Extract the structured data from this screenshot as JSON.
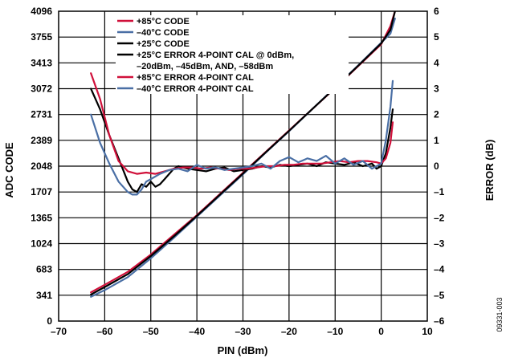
{
  "chart_data": {
    "type": "line",
    "xlabel": "PIN (dBm)",
    "ylabel": "ADC CODE",
    "y2label": "ERROR (dB)",
    "xlim": [
      -70,
      10
    ],
    "ylim": [
      0,
      4096
    ],
    "y2lim": [
      -6,
      6
    ],
    "xticks": [
      "–70",
      "–60",
      "–50",
      "–40",
      "–30",
      "–20",
      "–10",
      "0",
      "10"
    ],
    "yticks": [
      "0",
      "341",
      "683",
      "1024",
      "1365",
      "1707",
      "2048",
      "2389",
      "2731",
      "3072",
      "3413",
      "3755",
      "4096"
    ],
    "y2ticks": [
      "–6",
      "–5",
      "–4",
      "–3",
      "–2",
      "–1",
      "0",
      "1",
      "2",
      "3",
      "4",
      "5",
      "6"
    ],
    "grid": true,
    "legend_position": "top-left",
    "figure_id": "09331-003",
    "legend": [
      {
        "label": "+85°C CODE",
        "color": "#d0103a"
      },
      {
        "label": "–40°C CODE",
        "color": "#4a6fa5"
      },
      {
        "label": "+25°C CODE",
        "color": "#000000"
      },
      {
        "label": "+25°C ERROR 4-POINT CAL @ 0dBm,",
        "label2": "–20dBm, –45dBm, AND, –58dBm",
        "color": "#000000"
      },
      {
        "label": "+85°C ERROR 4-POINT CAL",
        "color": "#d0103a"
      },
      {
        "label": "–40°C ERROR 4-POINT CAL",
        "color": "#4a6fa5"
      }
    ],
    "series": [
      {
        "axis": "left",
        "color": "#d0103a",
        "x": [
          -63,
          -60,
          -55,
          -50,
          -45,
          -40,
          -35,
          -30,
          -25,
          -20,
          -15,
          -10,
          -5,
          0,
          2,
          3
        ],
        "y": [
          380,
          480,
          650,
          880,
          1140,
          1400,
          1680,
          1960,
          2240,
          2520,
          2800,
          3080,
          3370,
          3660,
          3900,
          4096
        ]
      },
      {
        "axis": "left",
        "color": "#4a6fa5",
        "x": [
          -63,
          -60,
          -55,
          -50,
          -45,
          -40,
          -35,
          -30,
          -25,
          -20,
          -15,
          -10,
          -5,
          0,
          2,
          3
        ],
        "y": [
          320,
          410,
          580,
          830,
          1100,
          1380,
          1660,
          1940,
          2230,
          2510,
          2800,
          3090,
          3380,
          3680,
          3800,
          4000
        ]
      },
      {
        "axis": "left",
        "color": "#000000",
        "x": [
          -63,
          -60,
          -55,
          -50,
          -45,
          -40,
          -35,
          -30,
          -25,
          -20,
          -15,
          -10,
          -5,
          0,
          2,
          3
        ],
        "y": [
          350,
          450,
          620,
          860,
          1120,
          1390,
          1670,
          1950,
          2235,
          2515,
          2800,
          3085,
          3375,
          3670,
          3850,
          4096
        ]
      },
      {
        "axis": "right",
        "color": "#000000",
        "x": [
          -63,
          -61,
          -59,
          -57,
          -55,
          -54,
          -53,
          -52,
          -51,
          -50,
          -49,
          -48,
          -47,
          -46,
          -45,
          -44,
          -42,
          -40,
          -38,
          -36,
          -34,
          -32,
          -30,
          -28,
          -26,
          -24,
          -22,
          -20,
          -18,
          -16,
          -14,
          -12,
          -10,
          -8,
          -6,
          -4,
          -2,
          -1,
          0,
          1,
          2,
          2.5
        ],
        "y": [
          3,
          2.2,
          1.2,
          0.3,
          -0.6,
          -0.9,
          -1.0,
          -0.7,
          -0.8,
          -0.6,
          -0.8,
          -0.7,
          -0.5,
          -0.3,
          -0.1,
          0,
          -0.1,
          -0.15,
          -0.2,
          -0.1,
          -0.05,
          -0.2,
          -0.15,
          -0.1,
          0,
          -0.05,
          0.05,
          0,
          0.05,
          0.1,
          0,
          0.15,
          0.1,
          0.05,
          0.15,
          0,
          0.1,
          -0.1,
          0,
          0.5,
          1.5,
          2.2
        ]
      },
      {
        "axis": "right",
        "color": "#d0103a",
        "x": [
          -63,
          -61,
          -59,
          -57,
          -55,
          -53,
          -51,
          -49,
          -47,
          -45,
          -43,
          -41,
          -39,
          -37,
          -35,
          -33,
          -31,
          -29,
          -27,
          -25,
          -23,
          -21,
          -19,
          -17,
          -15,
          -13,
          -11,
          -9,
          -7,
          -5,
          -3,
          -1,
          0,
          1,
          2,
          2.5
        ],
        "y": [
          3.6,
          2.6,
          1.2,
          0.2,
          -0.2,
          -0.3,
          -0.25,
          -0.3,
          -0.2,
          -0.1,
          -0.05,
          -0.05,
          -0.1,
          -0.05,
          -0.1,
          -0.15,
          -0.1,
          -0.1,
          -0.05,
          0,
          0,
          0.05,
          0.05,
          0.1,
          0.1,
          0.1,
          0.15,
          0.2,
          0.15,
          0.2,
          0.2,
          0.15,
          0.1,
          0.3,
          0.9,
          1.7
        ]
      },
      {
        "axis": "right",
        "color": "#4a6fa5",
        "x": [
          -63,
          -61,
          -59,
          -57,
          -55,
          -54,
          -53,
          -52,
          -51,
          -50,
          -48,
          -46,
          -44,
          -42,
          -40,
          -38,
          -36,
          -34,
          -32,
          -30,
          -28,
          -26,
          -24,
          -22,
          -20,
          -18,
          -16,
          -14,
          -12,
          -10,
          -8,
          -6,
          -4,
          -2,
          0,
          1,
          2,
          2.5
        ],
        "y": [
          2.0,
          0.9,
          0.1,
          -0.6,
          -1.0,
          -1.1,
          -1.1,
          -0.9,
          -0.6,
          -0.5,
          -0.3,
          -0.15,
          -0.1,
          -0.2,
          0.05,
          -0.1,
          -0.05,
          -0.15,
          -0.1,
          -0.05,
          0,
          0.1,
          -0.1,
          0.2,
          0.35,
          0.15,
          0.3,
          0.2,
          0.4,
          0.1,
          0.3,
          0.05,
          0.2,
          -0.1,
          0.1,
          1.0,
          2.3,
          3.3
        ]
      }
    ]
  }
}
